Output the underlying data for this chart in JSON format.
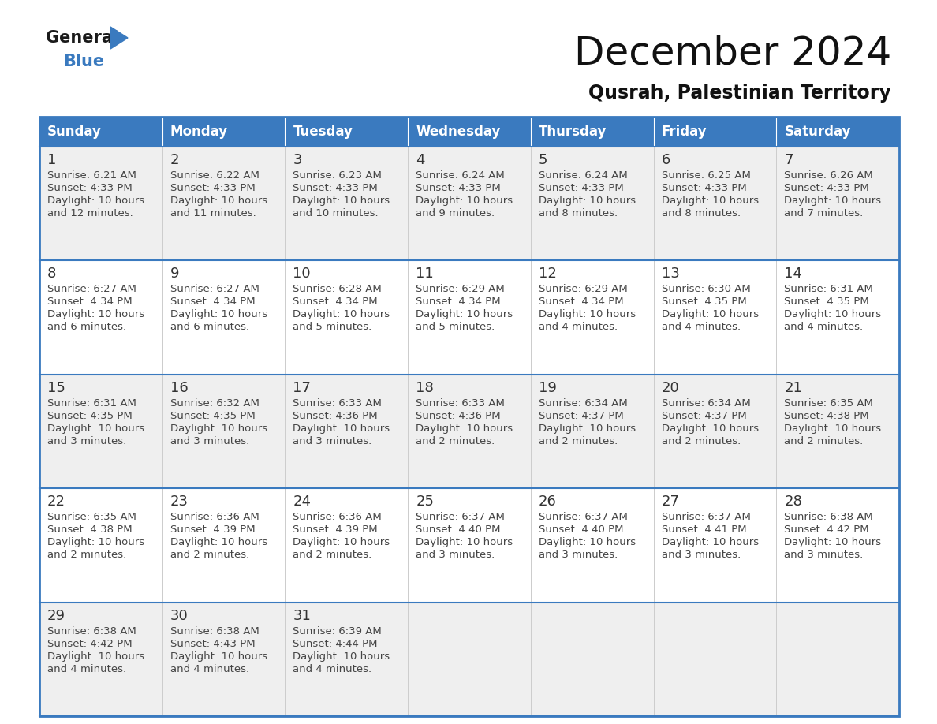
{
  "title": "December 2024",
  "subtitle": "Qusrah, Palestinian Territory",
  "header_color": "#3a7abf",
  "header_text_color": "#ffffff",
  "cell_bg_odd": "#efefef",
  "cell_bg_even": "#ffffff",
  "separator_color": "#3a7abf",
  "day_names": [
    "Sunday",
    "Monday",
    "Tuesday",
    "Wednesday",
    "Thursday",
    "Friday",
    "Saturday"
  ],
  "days": [
    {
      "day": 1,
      "col": 0,
      "row": 0,
      "sunrise": "6:21 AM",
      "sunset": "4:33 PM",
      "daylight_min": "12"
    },
    {
      "day": 2,
      "col": 1,
      "row": 0,
      "sunrise": "6:22 AM",
      "sunset": "4:33 PM",
      "daylight_min": "11"
    },
    {
      "day": 3,
      "col": 2,
      "row": 0,
      "sunrise": "6:23 AM",
      "sunset": "4:33 PM",
      "daylight_min": "10"
    },
    {
      "day": 4,
      "col": 3,
      "row": 0,
      "sunrise": "6:24 AM",
      "sunset": "4:33 PM",
      "daylight_min": "9"
    },
    {
      "day": 5,
      "col": 4,
      "row": 0,
      "sunrise": "6:24 AM",
      "sunset": "4:33 PM",
      "daylight_min": "8"
    },
    {
      "day": 6,
      "col": 5,
      "row": 0,
      "sunrise": "6:25 AM",
      "sunset": "4:33 PM",
      "daylight_min": "8"
    },
    {
      "day": 7,
      "col": 6,
      "row": 0,
      "sunrise": "6:26 AM",
      "sunset": "4:33 PM",
      "daylight_min": "7"
    },
    {
      "day": 8,
      "col": 0,
      "row": 1,
      "sunrise": "6:27 AM",
      "sunset": "4:34 PM",
      "daylight_min": "6"
    },
    {
      "day": 9,
      "col": 1,
      "row": 1,
      "sunrise": "6:27 AM",
      "sunset": "4:34 PM",
      "daylight_min": "6"
    },
    {
      "day": 10,
      "col": 2,
      "row": 1,
      "sunrise": "6:28 AM",
      "sunset": "4:34 PM",
      "daylight_min": "5"
    },
    {
      "day": 11,
      "col": 3,
      "row": 1,
      "sunrise": "6:29 AM",
      "sunset": "4:34 PM",
      "daylight_min": "5"
    },
    {
      "day": 12,
      "col": 4,
      "row": 1,
      "sunrise": "6:29 AM",
      "sunset": "4:34 PM",
      "daylight_min": "4"
    },
    {
      "day": 13,
      "col": 5,
      "row": 1,
      "sunrise": "6:30 AM",
      "sunset": "4:35 PM",
      "daylight_min": "4"
    },
    {
      "day": 14,
      "col": 6,
      "row": 1,
      "sunrise": "6:31 AM",
      "sunset": "4:35 PM",
      "daylight_min": "4"
    },
    {
      "day": 15,
      "col": 0,
      "row": 2,
      "sunrise": "6:31 AM",
      "sunset": "4:35 PM",
      "daylight_min": "3"
    },
    {
      "day": 16,
      "col": 1,
      "row": 2,
      "sunrise": "6:32 AM",
      "sunset": "4:35 PM",
      "daylight_min": "3"
    },
    {
      "day": 17,
      "col": 2,
      "row": 2,
      "sunrise": "6:33 AM",
      "sunset": "4:36 PM",
      "daylight_min": "3"
    },
    {
      "day": 18,
      "col": 3,
      "row": 2,
      "sunrise": "6:33 AM",
      "sunset": "4:36 PM",
      "daylight_min": "2"
    },
    {
      "day": 19,
      "col": 4,
      "row": 2,
      "sunrise": "6:34 AM",
      "sunset": "4:37 PM",
      "daylight_min": "2"
    },
    {
      "day": 20,
      "col": 5,
      "row": 2,
      "sunrise": "6:34 AM",
      "sunset": "4:37 PM",
      "daylight_min": "2"
    },
    {
      "day": 21,
      "col": 6,
      "row": 2,
      "sunrise": "6:35 AM",
      "sunset": "4:38 PM",
      "daylight_min": "2"
    },
    {
      "day": 22,
      "col": 0,
      "row": 3,
      "sunrise": "6:35 AM",
      "sunset": "4:38 PM",
      "daylight_min": "2"
    },
    {
      "day": 23,
      "col": 1,
      "row": 3,
      "sunrise": "6:36 AM",
      "sunset": "4:39 PM",
      "daylight_min": "2"
    },
    {
      "day": 24,
      "col": 2,
      "row": 3,
      "sunrise": "6:36 AM",
      "sunset": "4:39 PM",
      "daylight_min": "2"
    },
    {
      "day": 25,
      "col": 3,
      "row": 3,
      "sunrise": "6:37 AM",
      "sunset": "4:40 PM",
      "daylight_min": "3"
    },
    {
      "day": 26,
      "col": 4,
      "row": 3,
      "sunrise": "6:37 AM",
      "sunset": "4:40 PM",
      "daylight_min": "3"
    },
    {
      "day": 27,
      "col": 5,
      "row": 3,
      "sunrise": "6:37 AM",
      "sunset": "4:41 PM",
      "daylight_min": "3"
    },
    {
      "day": 28,
      "col": 6,
      "row": 3,
      "sunrise": "6:38 AM",
      "sunset": "4:42 PM",
      "daylight_min": "3"
    },
    {
      "day": 29,
      "col": 0,
      "row": 4,
      "sunrise": "6:38 AM",
      "sunset": "4:42 PM",
      "daylight_min": "4"
    },
    {
      "day": 30,
      "col": 1,
      "row": 4,
      "sunrise": "6:38 AM",
      "sunset": "4:43 PM",
      "daylight_min": "4"
    },
    {
      "day": 31,
      "col": 2,
      "row": 4,
      "sunrise": "6:39 AM",
      "sunset": "4:44 PM",
      "daylight_min": "4"
    }
  ],
  "logo_color_general": "#1a1a1a",
  "logo_color_blue": "#3a7abf",
  "logo_triangle_color": "#3a7abf",
  "title_fontsize": 36,
  "subtitle_fontsize": 17,
  "header_fontsize": 12,
  "day_num_fontsize": 13,
  "cell_text_fontsize": 9.5
}
